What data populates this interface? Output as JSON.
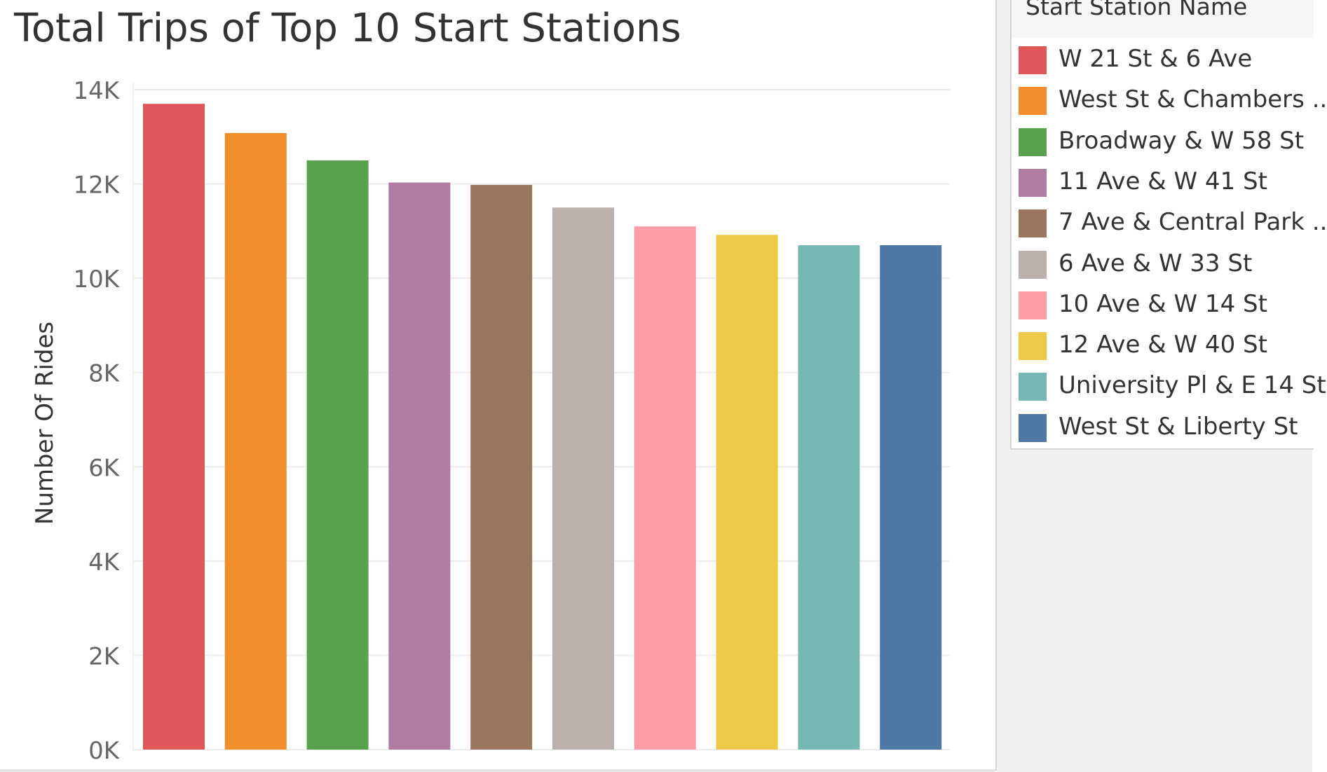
{
  "chart_data": {
    "type": "bar",
    "title": "Total Trips of Top 10 Start Stations",
    "xlabel": "",
    "ylabel": "Number Of Rides",
    "ylim": [
      0,
      14000
    ],
    "yticks": [
      {
        "value": 0,
        "label": "0K"
      },
      {
        "value": 2000,
        "label": "2K"
      },
      {
        "value": 4000,
        "label": "4K"
      },
      {
        "value": 6000,
        "label": "6K"
      },
      {
        "value": 8000,
        "label": "8K"
      },
      {
        "value": 10000,
        "label": "10K"
      },
      {
        "value": 12000,
        "label": "12K"
      },
      {
        "value": 14000,
        "label": "14K"
      }
    ],
    "grid": true,
    "legend_placement": "right",
    "categories": [
      "W 21 St & 6 Ave",
      "West St & Chambers ..",
      "Broadway & W 58 St",
      "11 Ave & W 41 St",
      "7 Ave & Central Park ..",
      "6 Ave & W 33 St",
      "10 Ave & W 14 St",
      "12 Ave & W 40 St",
      "University Pl & E 14 St",
      "West St & Liberty St"
    ],
    "values": [
      13700,
      13080,
      12500,
      12030,
      11980,
      11500,
      11100,
      10920,
      10700,
      10700
    ],
    "colors": [
      "#e15759",
      "#f28e2b",
      "#59a14f",
      "#b07aa1",
      "#9c755f",
      "#bab0ac",
      "#ff9da7",
      "#edc948",
      "#76b7b2",
      "#4e79a7"
    ]
  },
  "legend": {
    "title": "Start Station Name"
  }
}
